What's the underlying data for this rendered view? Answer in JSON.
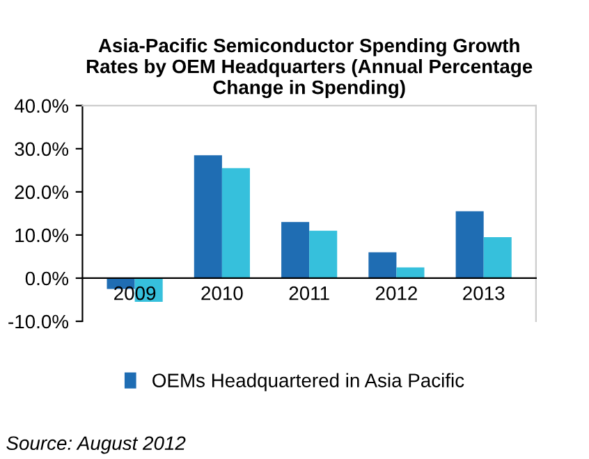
{
  "chart_data": {
    "type": "bar",
    "title": "Asia-Pacific Semiconductor Spending Growth\nRates by OEM Headquarters (Annual Percentage\nChange in Spending)",
    "categories": [
      "2009",
      "2010",
      "2011",
      "2012",
      "2013"
    ],
    "series": [
      {
        "name": "OEMs Headquartered in Asia Pacific",
        "color": "#1f6db3",
        "values": [
          -2.5,
          28.5,
          13,
          6,
          15.5
        ]
      },
      {
        "color": "#36c0dc",
        "values": [
          -5.5,
          25.5,
          11,
          2.5,
          9.5
        ]
      }
    ],
    "ylim": [
      -10,
      40
    ],
    "yticks": [
      {
        "value": -10,
        "label": "-10.0%"
      },
      {
        "value": 0,
        "label": "0.0%"
      },
      {
        "value": 10,
        "label": "10.0%"
      },
      {
        "value": 20,
        "label": "20.0%"
      },
      {
        "value": 30,
        "label": "30.0%"
      },
      {
        "value": 40,
        "label": "40.0%"
      }
    ],
    "grid": false,
    "legend": "bottom",
    "annotations": [
      "Source: August 2012"
    ]
  }
}
